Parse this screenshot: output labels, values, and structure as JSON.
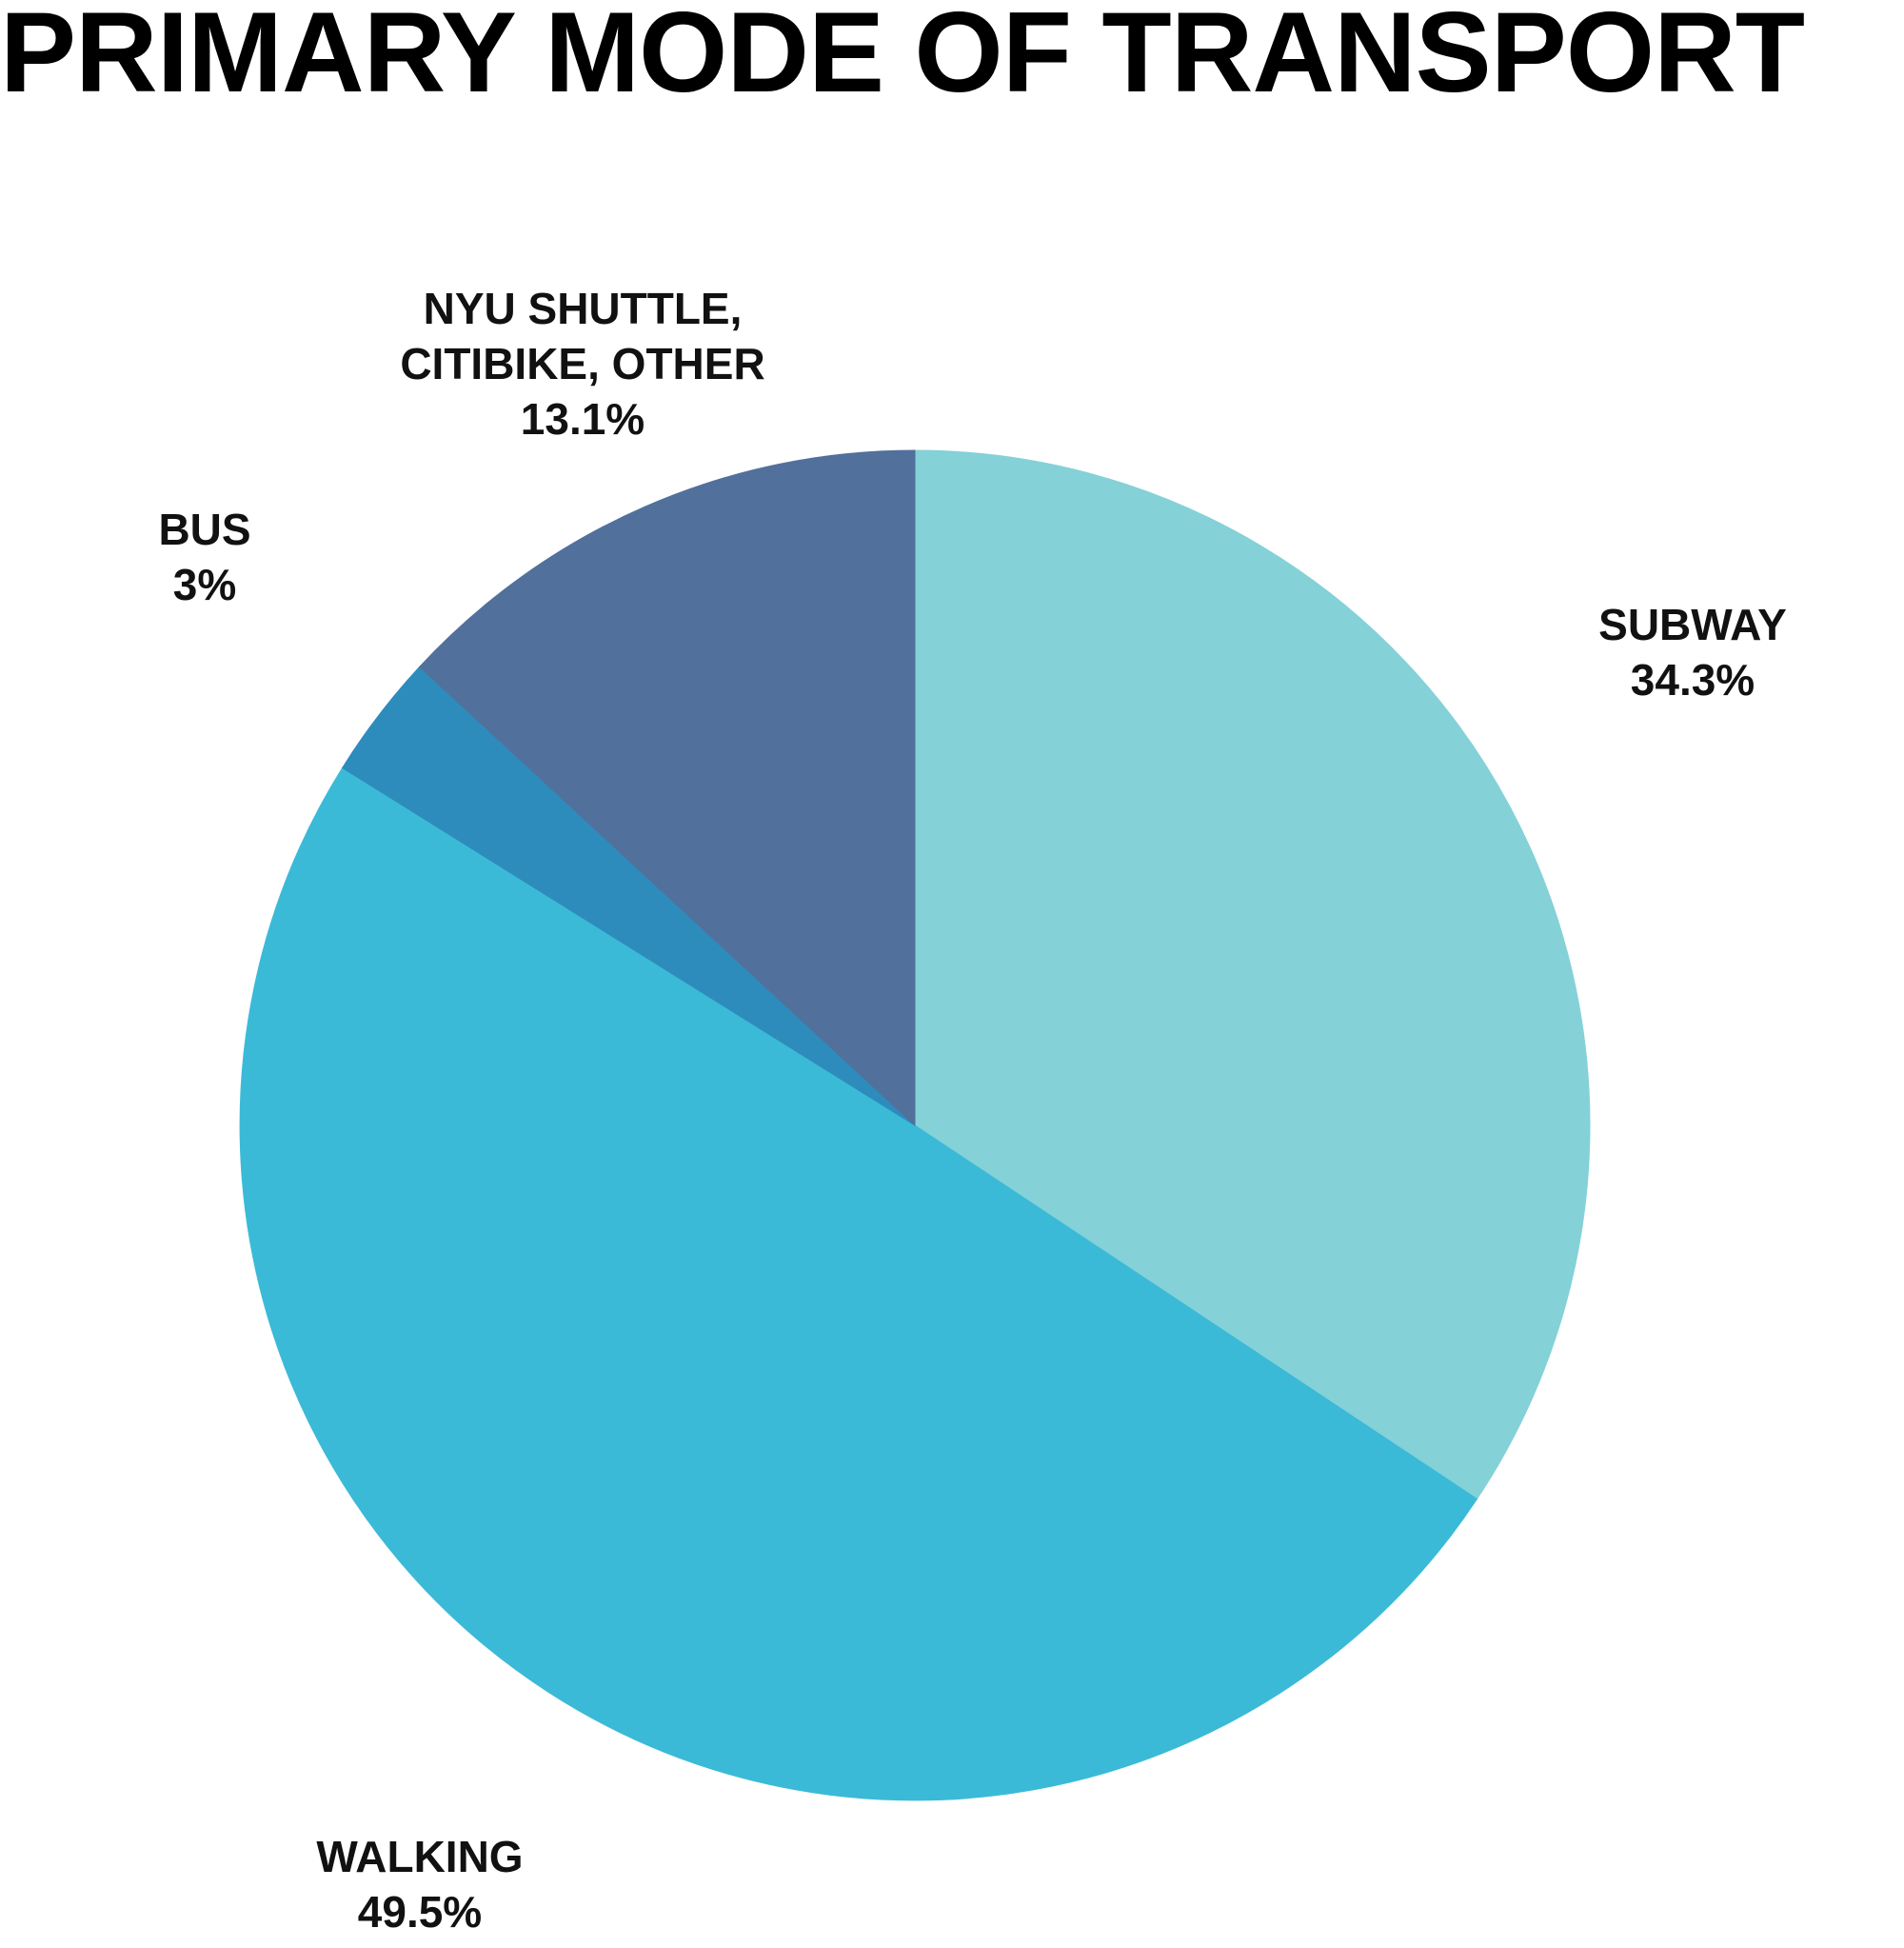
{
  "chart_data": {
    "type": "pie",
    "title": "PRIMARY MODE OF TRANSPORT",
    "start_angle_deg": 90,
    "direction": "clockwise",
    "slices": [
      {
        "label_lines": [
          "SUBWAY"
        ],
        "value": 34.3,
        "value_label": "34.3%",
        "color": "#84D1D8"
      },
      {
        "label_lines": [
          "WALKING"
        ],
        "value": 49.5,
        "value_label": "49.5%",
        "color": "#3BBAD7"
      },
      {
        "label_lines": [
          "BUS"
        ],
        "value": 3,
        "value_label": "3%",
        "color": "#2E8CBC"
      },
      {
        "label_lines": [
          "NYU SHUTTLE,",
          "CITIBIKE, OTHER"
        ],
        "value": 13.1,
        "value_label": "13.1%",
        "color": "#52709C"
      }
    ]
  }
}
